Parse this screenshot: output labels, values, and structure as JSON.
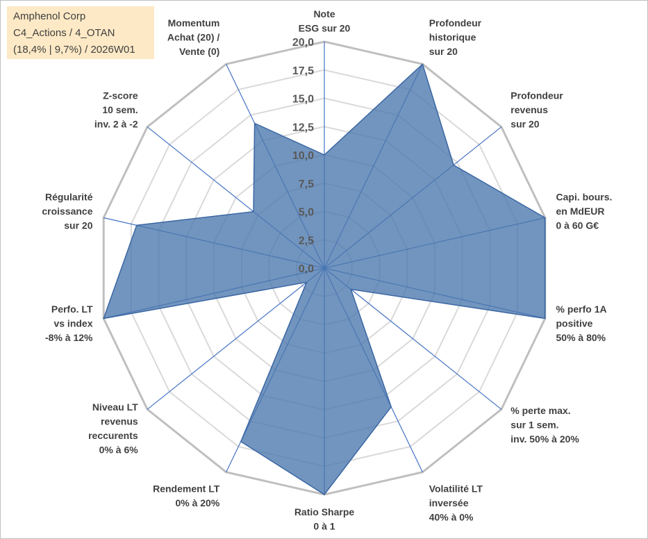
{
  "info": {
    "company": "Amphenol Corp",
    "category": "C4_Actions / 4_OTAN",
    "stats": "(18,4% | 9,7%) / 2026W01"
  },
  "colors": {
    "area_fill": "#4a77ad",
    "area_stroke": "#3a66a3",
    "spoke": "#4472c4",
    "grid_outer": "#bfbfbf",
    "grid_inner": "#d9d9d9",
    "infobox_bg": "#fde9c5"
  },
  "chart_data": {
    "type": "radar",
    "rmin": 0,
    "rmax": 20,
    "ticks": [
      "0,0",
      "2,5",
      "5,0",
      "7,5",
      "10,0",
      "12,5",
      "15,0",
      "17,5",
      "20,0"
    ],
    "tick_values": [
      0,
      2.5,
      5,
      7.5,
      10,
      12.5,
      15,
      17.5,
      20
    ],
    "axes": [
      {
        "lines": [
          "Note",
          "ESG sur 20"
        ]
      },
      {
        "lines": [
          "Profondeur",
          "historique",
          "sur 20"
        ]
      },
      {
        "lines": [
          "Profondeur",
          "revenus",
          "sur 20"
        ]
      },
      {
        "lines": [
          "Capi. bours.",
          "en MdEUR",
          "0 à 60 G€"
        ]
      },
      {
        "lines": [
          "% perfo 1A",
          "positive",
          "50% à 80%"
        ]
      },
      {
        "lines": [
          "% perte max.",
          "sur 1 sem.",
          "inv. 50% à 20%"
        ]
      },
      {
        "lines": [
          "Volatilité LT",
          "inversée",
          "40% à 0%"
        ]
      },
      {
        "lines": [
          "Ratio Sharpe",
          "0 à 1"
        ]
      },
      {
        "lines": [
          "Rendement LT",
          "0% à 20%"
        ]
      },
      {
        "lines": [
          "Niveau LT",
          "revenus",
          "reccurents",
          "0% à 6%"
        ]
      },
      {
        "lines": [
          "Perfo. LT",
          "vs index",
          "-8% à 12%"
        ]
      },
      {
        "lines": [
          "Régularité",
          "croissance",
          "sur 20"
        ]
      },
      {
        "lines": [
          "Z-score",
          "10 sem.",
          "inv. 2 à -2"
        ]
      },
      {
        "lines": [
          "Momentum",
          "Achat (20) /",
          "Vente (0)"
        ]
      }
    ],
    "series": [
      {
        "name": "Amphenol Corp",
        "values": [
          10.0,
          20.0,
          14.6,
          20.0,
          20.0,
          3.0,
          13.6,
          20.0,
          17.0,
          2.0,
          20.0,
          17.0,
          8.0,
          14.2
        ]
      }
    ]
  }
}
